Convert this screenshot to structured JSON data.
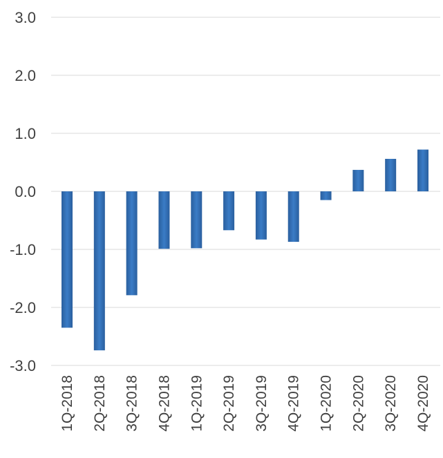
{
  "chart_data": {
    "type": "bar",
    "categories": [
      "1Q-2018",
      "2Q-2018",
      "3Q-2018",
      "4Q-2018",
      "1Q-2019",
      "2Q-2019",
      "3Q-2019",
      "4Q-2019",
      "1Q-2020",
      "2Q-2020",
      "3Q-2020",
      "4Q-2020"
    ],
    "series": [
      {
        "values": [
          -2.35,
          -2.74,
          -1.79,
          -0.99,
          -0.98,
          -0.67,
          -0.83,
          -0.87,
          -0.15,
          0.37,
          0.56,
          0.72
        ]
      }
    ],
    "yticks": [
      "3.0",
      "2.0",
      "1.0",
      "0.0",
      "-1.0",
      "-2.0",
      "-3.0"
    ],
    "ylim": [
      -3.0,
      3.0
    ],
    "grid": true,
    "bar_color": "#2e6db4"
  }
}
